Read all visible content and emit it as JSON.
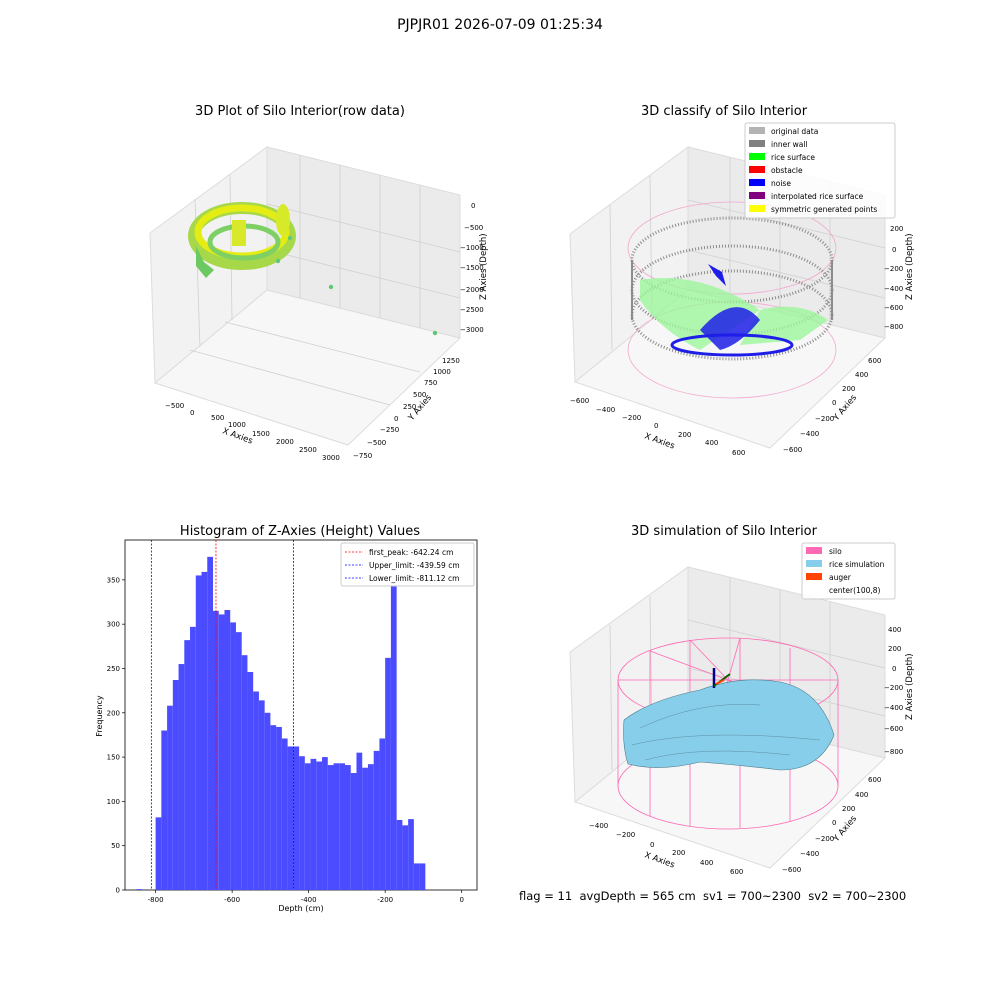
{
  "suptitle": "PJPJR01 2026-07-09 01:25:34",
  "footer": "flag = 11  avgDepth = 565 cm  sv1 = 700~2300  sv2 = 700~2300",
  "chart_data": [
    {
      "type": "scatter",
      "title": "3D Plot of Silo Interior(row data)",
      "xlabel": "X Axies",
      "ylabel": "Y Axies",
      "zlabel": "Z Axies (Depth)",
      "x_ticks": [
        "−500",
        "0",
        "500",
        "1000",
        "1500",
        "2000",
        "2500",
        "3000"
      ],
      "y_ticks": [
        "−750",
        "−500",
        "−250",
        "0",
        "250",
        "500",
        "750",
        "1000",
        "1250"
      ],
      "z_ticks": [
        "0",
        "−500",
        "−1000",
        "−1500",
        "−2000",
        "−2500",
        "−3000"
      ],
      "outliers": [
        {
          "x": 500,
          "y": 0,
          "z": -700
        },
        {
          "x": 800,
          "y": 100,
          "z": -1300
        },
        {
          "x": 1500,
          "y": 300,
          "z": -2000
        },
        {
          "x": 2900,
          "y": 200,
          "z": -3000
        }
      ],
      "colors": {
        "main": "#c8e61e",
        "secondary": "#5fc878"
      }
    },
    {
      "type": "scatter",
      "title": "3D classify of Silo Interior",
      "xlabel": "X Axies",
      "ylabel": "Y Axies",
      "zlabel": "Z Axies (Depth)",
      "x_ticks": [
        "−600",
        "−400",
        "−200",
        "0",
        "200",
        "400",
        "600"
      ],
      "y_ticks": [
        "−600",
        "−400",
        "−200",
        "0",
        "200",
        "400",
        "600"
      ],
      "z_ticks": [
        "200",
        "0",
        "−200",
        "−400",
        "−600",
        "−800"
      ],
      "legend": [
        {
          "label": "original data",
          "color": "#b3b3b3"
        },
        {
          "label": "inner wall",
          "color": "#808080"
        },
        {
          "label": "rice surface",
          "color": "#00ff00"
        },
        {
          "label": "obstacle",
          "color": "#ff0000"
        },
        {
          "label": "noise",
          "color": "#0000ff"
        },
        {
          "label": "interpolated rice surface",
          "color": "#800080"
        },
        {
          "label": "symmetric generated points",
          "color": "#ffff00"
        }
      ],
      "legend_position": "upper-right"
    },
    {
      "type": "bar",
      "title": "Histogram of Z-Axies (Height) Values",
      "xlabel": "Depth (cm)",
      "ylabel": "Frequency",
      "xlim": [
        -880,
        40
      ],
      "ylim": [
        0,
        395
      ],
      "x_ticks": [
        -800,
        -600,
        -400,
        -200,
        0
      ],
      "y_ticks": [
        0,
        50,
        100,
        150,
        200,
        250,
        300,
        350
      ],
      "bin_width": 15,
      "bins": [
        {
          "x": -800,
          "y": 82
        },
        {
          "x": -785,
          "y": 180
        },
        {
          "x": -770,
          "y": 208
        },
        {
          "x": -755,
          "y": 237
        },
        {
          "x": -740,
          "y": 255
        },
        {
          "x": -725,
          "y": 282
        },
        {
          "x": -710,
          "y": 297
        },
        {
          "x": -695,
          "y": 355
        },
        {
          "x": -680,
          "y": 359
        },
        {
          "x": -665,
          "y": 376
        },
        {
          "x": -650,
          "y": 315
        },
        {
          "x": -635,
          "y": 311
        },
        {
          "x": -620,
          "y": 316
        },
        {
          "x": -605,
          "y": 302
        },
        {
          "x": -590,
          "y": 291
        },
        {
          "x": -575,
          "y": 265
        },
        {
          "x": -560,
          "y": 246
        },
        {
          "x": -545,
          "y": 224
        },
        {
          "x": -530,
          "y": 214
        },
        {
          "x": -515,
          "y": 200
        },
        {
          "x": -500,
          "y": 186
        },
        {
          "x": -485,
          "y": 184
        },
        {
          "x": -470,
          "y": 171
        },
        {
          "x": -455,
          "y": 162
        },
        {
          "x": -440,
          "y": 162
        },
        {
          "x": -425,
          "y": 151
        },
        {
          "x": -410,
          "y": 143
        },
        {
          "x": -395,
          "y": 148
        },
        {
          "x": -380,
          "y": 145
        },
        {
          "x": -365,
          "y": 150
        },
        {
          "x": -350,
          "y": 141
        },
        {
          "x": -335,
          "y": 143
        },
        {
          "x": -320,
          "y": 143
        },
        {
          "x": -305,
          "y": 141
        },
        {
          "x": -290,
          "y": 132
        },
        {
          "x": -275,
          "y": 155
        },
        {
          "x": -260,
          "y": 138
        },
        {
          "x": -245,
          "y": 142
        },
        {
          "x": -230,
          "y": 157
        },
        {
          "x": -215,
          "y": 171
        },
        {
          "x": -200,
          "y": 262
        },
        {
          "x": -185,
          "y": 348
        },
        {
          "x": -170,
          "y": 79
        },
        {
          "x": -155,
          "y": 73
        },
        {
          "x": -140,
          "y": 80
        },
        {
          "x": -125,
          "y": 30
        },
        {
          "x": -110,
          "y": 30
        }
      ],
      "stray_bin": {
        "x": -850,
        "y": 1
      },
      "bar_color": "#4b4bff",
      "vlines": [
        {
          "label": "first_peak: -642.24 cm",
          "x": -642.24,
          "color": "#ff0000"
        },
        {
          "label": "Upper_limit: -439.59 cm",
          "x": -439.59,
          "color": "#0000ff"
        },
        {
          "label": "Lower_limit: -811.12 cm",
          "x": -811.12,
          "color": "#0000ff"
        }
      ],
      "legend_position": "upper-right"
    },
    {
      "type": "area",
      "title": "3D simulation of Silo Interior",
      "xlabel": "X Axies",
      "ylabel": "Y Axies",
      "zlabel": "Z Axies (Depth)",
      "x_ticks": [
        "−400",
        "−200",
        "0",
        "200",
        "400",
        "600"
      ],
      "y_ticks": [
        "−600",
        "−400",
        "−200",
        "0",
        "200",
        "400",
        "600"
      ],
      "z_ticks": [
        "400",
        "200",
        "0",
        "−200",
        "−400",
        "−600",
        "−800"
      ],
      "legend": [
        {
          "label": "silo",
          "color": "#ff69b4"
        },
        {
          "label": "rice simulation",
          "color": "#87ceeb"
        },
        {
          "label": "auger",
          "color": "#ff4500"
        },
        {
          "label": "center(100,8)",
          "color": ""
        }
      ],
      "legend_position": "upper-right"
    }
  ]
}
